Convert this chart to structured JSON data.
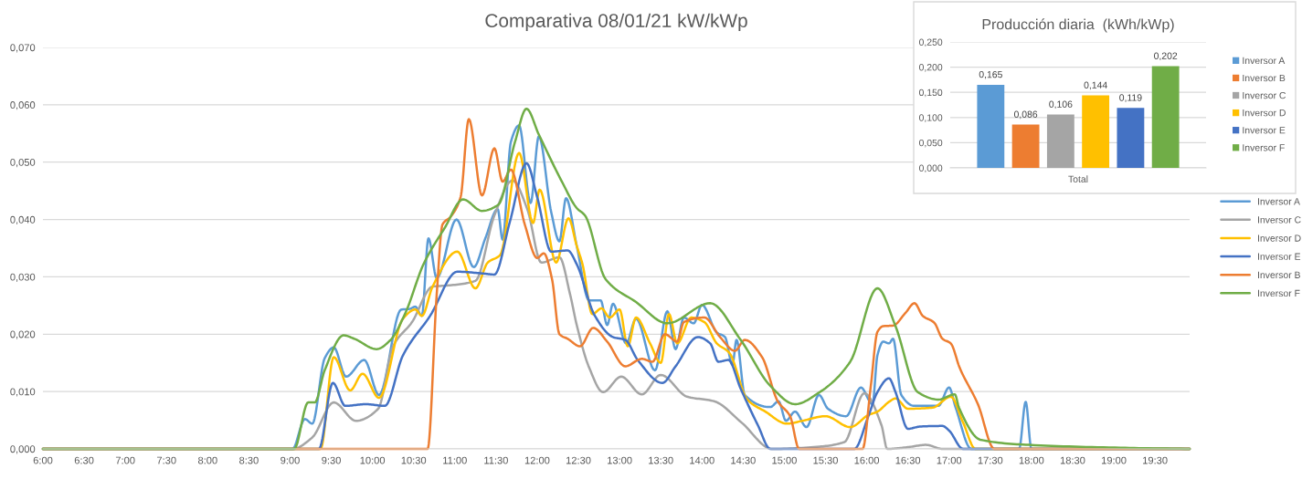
{
  "chart_data": [
    {
      "type": "line",
      "title": "Comparativa 08/01/21 kW/kWp",
      "xlim": [
        6,
        19.92
      ],
      "xticks": [
        {
          "value": 6,
          "label": "6:00"
        },
        {
          "value": 6.5,
          "label": "6:30"
        },
        {
          "value": 7,
          "label": "7:00"
        },
        {
          "value": 7.5,
          "label": "7:30"
        },
        {
          "value": 8,
          "label": "8:00"
        },
        {
          "value": 8.5,
          "label": "8:30"
        },
        {
          "value": 9,
          "label": "9:00"
        },
        {
          "value": 9.5,
          "label": "9:30"
        },
        {
          "value": 10,
          "label": "10:00"
        },
        {
          "value": 10.5,
          "label": "10:30"
        },
        {
          "value": 11,
          "label": "11:00"
        },
        {
          "value": 11.5,
          "label": "11:30"
        },
        {
          "value": 12,
          "label": "12:00"
        },
        {
          "value": 12.5,
          "label": "12:30"
        },
        {
          "value": 13,
          "label": "13:00"
        },
        {
          "value": 13.5,
          "label": "13:30"
        },
        {
          "value": 14,
          "label": "14:00"
        },
        {
          "value": 14.5,
          "label": "14:30"
        },
        {
          "value": 15,
          "label": "15:00"
        },
        {
          "value": 15.5,
          "label": "15:30"
        },
        {
          "value": 16,
          "label": "16:00"
        },
        {
          "value": 16.5,
          "label": "16:30"
        },
        {
          "value": 17,
          "label": "17:00"
        },
        {
          "value": 17.5,
          "label": "17:30"
        },
        {
          "value": 18,
          "label": "18:00"
        },
        {
          "value": 18.5,
          "label": "18:30"
        },
        {
          "value": 19,
          "label": "19:00"
        },
        {
          "value": 19.5,
          "label": "19:30"
        }
      ],
      "ylim": [
        0,
        0.07
      ],
      "yticks": [
        {
          "value": 0,
          "label": "0,000"
        },
        {
          "value": 0.01,
          "label": "0,010"
        },
        {
          "value": 0.02,
          "label": "0,020"
        },
        {
          "value": 0.03,
          "label": "0,030"
        },
        {
          "value": 0.04,
          "label": "0,040"
        },
        {
          "value": 0.05,
          "label": "0,050"
        },
        {
          "value": 0.06,
          "label": "0,060"
        },
        {
          "value": 0.07,
          "label": "0,070"
        }
      ],
      "grid": "y",
      "legend": "right",
      "series": [
        {
          "name": "Inversor A",
          "color": "#5b9bd5",
          "x": [
            6,
            9.03,
            9.18,
            9.27,
            9.42,
            9.53,
            9.68,
            9.9,
            10.08,
            10.35,
            10.45,
            10.52,
            10.6,
            10.68,
            10.78,
            11.02,
            11.23,
            11.37,
            11.52,
            11.58,
            11.68,
            11.78,
            11.92,
            12.02,
            12.17,
            12.27,
            12.35,
            12.48,
            12.63,
            12.77,
            12.85,
            12.92,
            13.08,
            13.2,
            13.43,
            13.58,
            13.68,
            13.78,
            13.9,
            14.0,
            14.18,
            14.28,
            14.37,
            14.42,
            14.52,
            14.83,
            14.93,
            15.02,
            15.13,
            15.27,
            15.42,
            15.53,
            15.75,
            15.93,
            16.07,
            16.13,
            16.2,
            16.27,
            16.32,
            16.42,
            16.58,
            16.87,
            17.0,
            17.08,
            17.27,
            17.85,
            17.93,
            18.0,
            19.92
          ],
          "values": [
            0,
            0,
            0.0052,
            0.0044,
            0.0158,
            0.0177,
            0.0126,
            0.0155,
            0.0094,
            0.0243,
            0.0244,
            0.0248,
            0.0232,
            0.0367,
            0.0298,
            0.04,
            0.0317,
            0.0367,
            0.0418,
            0.0365,
            0.0535,
            0.0564,
            0.0429,
            0.0545,
            0.0413,
            0.0362,
            0.0437,
            0.0354,
            0.0259,
            0.0259,
            0.0216,
            0.0253,
            0.0184,
            0.0227,
            0.0137,
            0.024,
            0.0174,
            0.0229,
            0.0219,
            0.0251,
            0.0203,
            0.0195,
            0.0147,
            0.019,
            0.0094,
            0.0073,
            0.0083,
            0.0049,
            0.0065,
            0.0038,
            0.0094,
            0.007,
            0.0057,
            0.0107,
            0.0078,
            0.0163,
            0.0187,
            0.0184,
            0.0192,
            0.0094,
            0.0075,
            0.0075,
            0.0107,
            0.0072,
            0,
            0,
            0.0082,
            0,
            0
          ]
        },
        {
          "name": "Inversor C",
          "color": "#a5a5a5",
          "x": [
            6,
            9.03,
            9.27,
            9.53,
            9.8,
            10.07,
            10.25,
            10.48,
            10.73,
            10.92,
            11.25,
            11.48,
            11.7,
            11.88,
            12.05,
            12.27,
            12.4,
            12.48,
            12.63,
            12.8,
            13.02,
            13.27,
            13.5,
            13.82,
            14.15,
            14.48,
            14.85,
            15.43,
            15.73,
            15.97,
            16.18,
            16.25,
            16.5,
            16.72,
            16.92,
            19.92
          ],
          "values": [
            0,
            0,
            0.002,
            0.0081,
            0.0049,
            0.007,
            0.0179,
            0.0221,
            0.0283,
            0.0285,
            0.0293,
            0.0407,
            0.0468,
            0.0418,
            0.0325,
            0.0334,
            0.0269,
            0.0216,
            0.0142,
            0.0099,
            0.0126,
            0.0095,
            0.0129,
            0.0091,
            0.0083,
            0.0046,
            0,
            0.0004,
            0.0012,
            0.0097,
            0.0041,
            0,
            0.0003,
            0.0007,
            0,
            0
          ]
        },
        {
          "name": "Inversor D",
          "color": "#ffc000",
          "x": [
            6,
            9.37,
            9.53,
            9.73,
            9.88,
            10.08,
            10.37,
            10.52,
            10.6,
            10.73,
            11.03,
            11.25,
            11.4,
            11.55,
            11.78,
            11.95,
            12.03,
            12.23,
            12.38,
            12.48,
            12.55,
            12.67,
            12.78,
            12.88,
            13.0,
            13.1,
            13.2,
            13.37,
            13.5,
            13.6,
            13.7,
            13.87,
            14.03,
            14.18,
            14.33,
            14.55,
            14.77,
            15.03,
            15.22,
            15.5,
            15.8,
            16.02,
            16.13,
            16.28,
            16.35,
            16.5,
            16.8,
            17.02,
            17.17,
            17.32,
            19.92
          ],
          "values": [
            0,
            0,
            0.016,
            0.0102,
            0.0131,
            0.0089,
            0.0227,
            0.0243,
            0.0232,
            0.0283,
            0.0344,
            0.028,
            0.0325,
            0.0338,
            0.0516,
            0.0394,
            0.0452,
            0.0325,
            0.0402,
            0.0354,
            0.0322,
            0.0235,
            0.0245,
            0.0229,
            0.0243,
            0.0179,
            0.0229,
            0.0184,
            0.015,
            0.0235,
            0.0184,
            0.0229,
            0.0221,
            0.0184,
            0.0168,
            0.0086,
            0.0065,
            0.0044,
            0.0049,
            0.0057,
            0.0038,
            0.0059,
            0.0065,
            0.0083,
            0.0088,
            0.007,
            0.0072,
            0.0091,
            0.0046,
            0,
            0
          ]
        },
        {
          "name": "Inversor E",
          "color": "#4472c4",
          "x": [
            6,
            9.35,
            9.52,
            9.67,
            9.92,
            10.15,
            10.37,
            10.7,
            11.03,
            11.33,
            11.48,
            11.67,
            11.87,
            12.0,
            12.17,
            12.37,
            12.48,
            12.7,
            12.92,
            13.07,
            13.22,
            13.52,
            13.68,
            13.95,
            14.1,
            14.2,
            14.32,
            14.47,
            14.68,
            14.83,
            15.85,
            16.02,
            16.13,
            16.27,
            16.35,
            16.5,
            16.65,
            16.92,
            17.0,
            17.17,
            19.92
          ],
          "values": [
            0,
            0,
            0.0115,
            0.0075,
            0.0078,
            0.0075,
            0.0163,
            0.0232,
            0.0309,
            0.0306,
            0.0304,
            0.0397,
            0.0498,
            0.0439,
            0.0344,
            0.0346,
            0.0322,
            0.0232,
            0.0195,
            0.019,
            0.0155,
            0.0115,
            0.0144,
            0.0195,
            0.0184,
            0.0152,
            0.0155,
            0.0105,
            0.0041,
            0,
            0,
            0.0057,
            0.0099,
            0.0123,
            0.0099,
            0.0035,
            0.0039,
            0.004,
            0.0032,
            0,
            0
          ]
        },
        {
          "name": "Inversor B",
          "color": "#ed7d31",
          "x": [
            6,
            10.67,
            10.78,
            10.85,
            10.95,
            11.07,
            11.17,
            11.33,
            11.48,
            11.58,
            11.68,
            11.85,
            12.0,
            12.08,
            12.18,
            12.27,
            12.37,
            12.52,
            12.68,
            12.85,
            13.07,
            13.27,
            13.4,
            13.55,
            13.7,
            13.78,
            14.03,
            14.22,
            14.4,
            14.52,
            14.73,
            14.92,
            15.07,
            15.18,
            15.95,
            16.05,
            16.13,
            16.2,
            16.32,
            16.47,
            16.58,
            16.68,
            16.82,
            16.92,
            17.02,
            17.13,
            17.35,
            17.55,
            19.92
          ],
          "values": [
            0,
            0,
            0.0269,
            0.0391,
            0.0405,
            0.0439,
            0.0575,
            0.0442,
            0.0524,
            0.0466,
            0.0487,
            0.0391,
            0.0333,
            0.0341,
            0.0296,
            0.02,
            0.0192,
            0.0179,
            0.0211,
            0.0187,
            0.0144,
            0.0157,
            0.0152,
            0.02,
            0.0187,
            0.0221,
            0.0229,
            0.0195,
            0.0171,
            0.019,
            0.016,
            0.0083,
            0.0057,
            0,
            0,
            0.011,
            0.0204,
            0.0214,
            0.0215,
            0.0237,
            0.0254,
            0.0232,
            0.022,
            0.0192,
            0.0184,
            0.0141,
            0.0078,
            0,
            0
          ]
        },
        {
          "name": "Inversor F",
          "color": "#70ad47",
          "x": [
            6,
            9.05,
            9.22,
            9.3,
            9.42,
            9.65,
            9.78,
            10.05,
            10.22,
            10.4,
            10.62,
            10.88,
            11.1,
            11.33,
            11.53,
            11.73,
            11.87,
            12.02,
            12.3,
            12.48,
            12.58,
            12.83,
            13.2,
            13.58,
            14.1,
            14.47,
            14.83,
            15.13,
            15.43,
            15.8,
            16.13,
            16.35,
            16.62,
            16.87,
            17.07,
            17.12,
            17.38,
            17.97,
            19.08,
            19.92
          ],
          "values": [
            0,
            0,
            0.0081,
            0.0081,
            0.0137,
            0.0198,
            0.0192,
            0.0174,
            0.019,
            0.0237,
            0.0322,
            0.0386,
            0.0435,
            0.0415,
            0.0426,
            0.0535,
            0.0593,
            0.0548,
            0.0466,
            0.042,
            0.0407,
            0.0296,
            0.0256,
            0.0219,
            0.0254,
            0.019,
            0.011,
            0.0078,
            0.0099,
            0.0152,
            0.028,
            0.0214,
            0.0099,
            0.0086,
            0.0095,
            0.0072,
            0.0016,
            0.0007,
            0.0002,
            0
          ]
        }
      ]
    },
    {
      "type": "bar",
      "title": "Producción diaria  (kWh/kWp)",
      "categories": [
        "Total"
      ],
      "ylim": [
        0,
        0.25
      ],
      "yticks": [
        {
          "value": 0,
          "label": "0,000"
        },
        {
          "value": 0.05,
          "label": "0,050"
        },
        {
          "value": 0.1,
          "label": "0,100"
        },
        {
          "value": 0.15,
          "label": "0,150"
        },
        {
          "value": 0.2,
          "label": "0,200"
        },
        {
          "value": 0.25,
          "label": "0,250"
        }
      ],
      "grid": "y",
      "legend": "right",
      "series": [
        {
          "name": "Inversor A",
          "color": "#5b9bd5",
          "values": [
            0.165
          ],
          "value_labels": [
            "0,165"
          ]
        },
        {
          "name": "Inversor B",
          "color": "#ed7d31",
          "values": [
            0.086
          ],
          "value_labels": [
            "0,086"
          ]
        },
        {
          "name": "Inversor C",
          "color": "#a5a5a5",
          "values": [
            0.106
          ],
          "value_labels": [
            "0,106"
          ]
        },
        {
          "name": "Inversor D",
          "color": "#ffc000",
          "values": [
            0.144
          ],
          "value_labels": [
            "0,144"
          ]
        },
        {
          "name": "Inversor E",
          "color": "#4472c4",
          "values": [
            0.119
          ],
          "value_labels": [
            "0,119"
          ]
        },
        {
          "name": "Inversor F",
          "color": "#70ad47",
          "values": [
            0.202
          ],
          "value_labels": [
            "0,202"
          ]
        }
      ]
    }
  ]
}
